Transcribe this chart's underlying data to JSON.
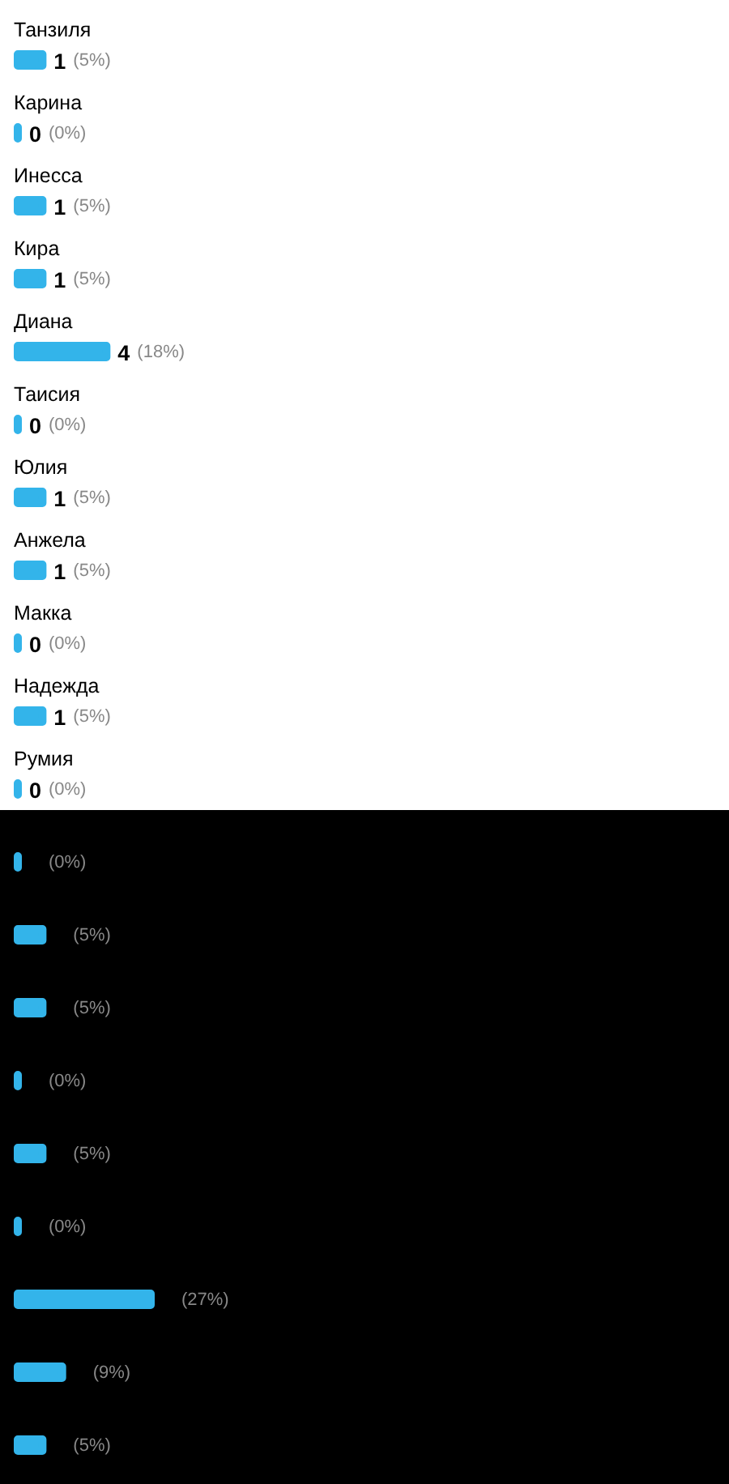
{
  "chart_data": {
    "type": "bar",
    "orientation": "horizontal",
    "categories": [
      "Танзиля",
      "Карина",
      "Инесса",
      "Кира",
      "Диана",
      "Таисия",
      "Юлия",
      "Анжела",
      "Макка",
      "Надежда",
      "Румия",
      null,
      null,
      null,
      null,
      null,
      null,
      null,
      null,
      null
    ],
    "values": [
      5,
      0,
      5,
      5,
      18,
      0,
      5,
      5,
      0,
      5,
      0,
      0,
      5,
      5,
      0,
      5,
      0,
      27,
      9,
      5
    ],
    "color": "#33b4ea",
    "value_labels": [
      "1 (5%)",
      "0 (0%)",
      "1 (5%)",
      "1 (5%)",
      "4 (18%)",
      "0 (0%)",
      "1 (5%)",
      "1 (5%)",
      "0 (0%)",
      "1 (5%)",
      "0 (0%)",
      "(0%)",
      "(5%)",
      "(5%)",
      "(0%)",
      "(5%)",
      "(0%)",
      "(27%)",
      "(9%)",
      "(5%)"
    ]
  }
}
